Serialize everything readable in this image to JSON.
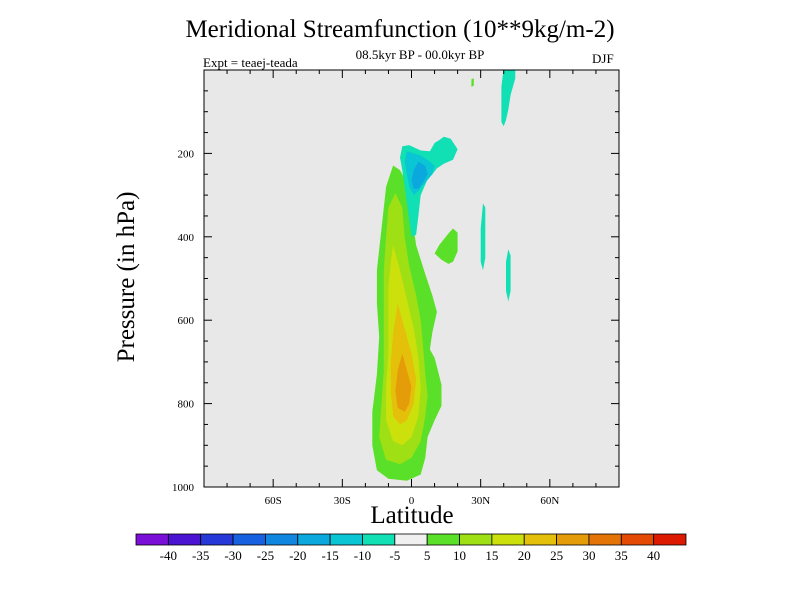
{
  "chart_data": {
    "type": "contour",
    "title": "Meridional Streamfunction (10**9kg/m-2)",
    "subtitle": "08.5kyr BP - 00.0kyr BP",
    "experiment": "Expt = teaej-teada",
    "season": "DJF",
    "xlabel": "Latitude",
    "ylabel": "Pressure (in hPa)",
    "xlim": [
      -90,
      90
    ],
    "ylim": [
      1000,
      0
    ],
    "x_ticks": [
      {
        "value": -60,
        "label": "60S"
      },
      {
        "value": -30,
        "label": "30S"
      },
      {
        "value": 0,
        "label": "0"
      },
      {
        "value": 30,
        "label": "30N"
      },
      {
        "value": 60,
        "label": "60N"
      }
    ],
    "y_ticks": [
      {
        "value": 200,
        "label": "200"
      },
      {
        "value": 400,
        "label": "400"
      },
      {
        "value": 600,
        "label": "600"
      },
      {
        "value": 800,
        "label": "800"
      },
      {
        "value": 1000,
        "label": "1000"
      }
    ],
    "background_color": "#e8e8e8",
    "colorbar": {
      "levels": [
        -40,
        -35,
        -30,
        -25,
        -20,
        -15,
        -10,
        -5,
        5,
        10,
        15,
        20,
        25,
        30,
        35,
        40
      ],
      "labels": [
        "-40",
        "-35",
        "-30",
        "-25",
        "-20",
        "-15",
        "-10",
        "-5",
        "5",
        "10",
        "15",
        "20",
        "25",
        "30",
        "35",
        "40"
      ],
      "colors": [
        "#7a0fd8",
        "#4b14d2",
        "#2638d8",
        "#1760e0",
        "#0f86e0",
        "#0aa8dc",
        "#0ac6d4",
        "#10e0b4",
        "#f0f0f0",
        "#5ae028",
        "#9ee014",
        "#cce00c",
        "#e4c00a",
        "#e49c08",
        "#e47406",
        "#e44a04",
        "#dc1a02"
      ]
    },
    "regions": [
      {
        "level": 10,
        "color": "#5ae028",
        "points": [
          [
            -8,
            229
          ],
          [
            -5,
            240
          ],
          [
            -1,
            280
          ],
          [
            0,
            340
          ],
          [
            2,
            420
          ],
          [
            6,
            490
          ],
          [
            9,
            540
          ],
          [
            11,
            580
          ],
          [
            9,
            630
          ],
          [
            8,
            670
          ],
          [
            10,
            690
          ],
          [
            13,
            755
          ],
          [
            13,
            805
          ],
          [
            10,
            840
          ],
          [
            7,
            880
          ],
          [
            6,
            930
          ],
          [
            4,
            970
          ],
          [
            -2,
            985
          ],
          [
            -10,
            980
          ],
          [
            -15,
            960
          ],
          [
            -17,
            900
          ],
          [
            -17,
            820
          ],
          [
            -15,
            730
          ],
          [
            -14,
            640
          ],
          [
            -15,
            560
          ],
          [
            -15,
            480
          ],
          [
            -13,
            380
          ],
          [
            -11,
            280
          ]
        ]
      },
      {
        "level": 10,
        "color": "#5ae028",
        "points": [
          [
            16,
            392
          ],
          [
            18,
            380
          ],
          [
            20,
            390
          ],
          [
            20,
            435
          ],
          [
            18,
            460
          ],
          [
            16,
            465
          ],
          [
            13,
            455
          ],
          [
            10,
            440
          ],
          [
            12,
            420
          ]
        ]
      },
      {
        "level": 10,
        "color": "#5ae028",
        "points": [
          [
            26,
            22
          ],
          [
            27,
            20
          ],
          [
            27,
            38
          ],
          [
            26,
            40
          ]
        ]
      },
      {
        "level": 15,
        "color": "#9ee014",
        "points": [
          [
            -7,
            295
          ],
          [
            -4,
            330
          ],
          [
            -3,
            400
          ],
          [
            -1,
            470
          ],
          [
            2,
            540
          ],
          [
            4,
            600
          ],
          [
            5,
            660
          ],
          [
            6,
            730
          ],
          [
            7,
            780
          ],
          [
            6,
            830
          ],
          [
            4,
            890
          ],
          [
            0,
            930
          ],
          [
            -5,
            945
          ],
          [
            -11,
            935
          ],
          [
            -14,
            880
          ],
          [
            -13,
            800
          ],
          [
            -12,
            720
          ],
          [
            -12,
            640
          ],
          [
            -12,
            560
          ],
          [
            -12,
            480
          ],
          [
            -11,
            400
          ],
          [
            -10,
            330
          ]
        ]
      },
      {
        "level": 20,
        "color": "#cce00c",
        "points": [
          [
            -8,
            420
          ],
          [
            -5,
            480
          ],
          [
            -2,
            550
          ],
          [
            1,
            620
          ],
          [
            3,
            690
          ],
          [
            4,
            760
          ],
          [
            3,
            830
          ],
          [
            0,
            880
          ],
          [
            -4,
            900
          ],
          [
            -8,
            890
          ],
          [
            -11,
            840
          ],
          [
            -11,
            760
          ],
          [
            -10,
            680
          ],
          [
            -10,
            600
          ],
          [
            -10,
            520
          ],
          [
            -9,
            460
          ]
        ]
      },
      {
        "level": 25,
        "color": "#e4c00a",
        "points": [
          [
            -6,
            560
          ],
          [
            -3,
            620
          ],
          [
            0,
            680
          ],
          [
            2,
            740
          ],
          [
            1,
            800
          ],
          [
            -2,
            840
          ],
          [
            -5,
            850
          ],
          [
            -8,
            830
          ],
          [
            -9,
            770
          ],
          [
            -9,
            700
          ],
          [
            -8,
            630
          ]
        ]
      },
      {
        "level": 30,
        "color": "#e49c08",
        "points": [
          [
            -4,
            680
          ],
          [
            -2,
            720
          ],
          [
            0,
            760
          ],
          [
            -1,
            800
          ],
          [
            -3,
            820
          ],
          [
            -6,
            810
          ],
          [
            -7,
            770
          ],
          [
            -6,
            720
          ]
        ]
      },
      {
        "level": -5,
        "color": "#10e0b4",
        "points": [
          [
            -4,
            183
          ],
          [
            -1,
            180
          ],
          [
            4,
            193
          ],
          [
            8,
            195
          ],
          [
            10,
            175
          ],
          [
            12,
            168
          ],
          [
            14,
            160
          ],
          [
            17,
            165
          ],
          [
            20,
            190
          ],
          [
            18,
            215
          ],
          [
            14,
            225
          ],
          [
            11,
            236
          ],
          [
            9,
            250
          ],
          [
            7,
            262
          ],
          [
            4,
            300
          ],
          [
            3,
            350
          ],
          [
            2,
            395
          ],
          [
            0,
            400
          ],
          [
            -1,
            360
          ],
          [
            -2,
            320
          ],
          [
            -3,
            280
          ],
          [
            -4,
            240
          ],
          [
            -5,
            210
          ]
        ]
      },
      {
        "level": -5,
        "color": "#10e0b4",
        "points": [
          [
            40,
            -5
          ],
          [
            45,
            -5
          ],
          [
            45,
            20
          ],
          [
            43,
            60
          ],
          [
            42,
            95
          ],
          [
            41,
            120
          ],
          [
            40,
            135
          ],
          [
            39,
            125
          ],
          [
            39,
            80
          ],
          [
            39,
            40
          ]
        ]
      },
      {
        "level": -5,
        "color": "#10e0b4",
        "points": [
          [
            31,
            320
          ],
          [
            32,
            330
          ],
          [
            32,
            450
          ],
          [
            31,
            480
          ],
          [
            30,
            460
          ],
          [
            30,
            380
          ]
        ]
      },
      {
        "level": -5,
        "color": "#10e0b4",
        "points": [
          [
            42,
            430
          ],
          [
            43,
            445
          ],
          [
            43,
            530
          ],
          [
            42,
            555
          ],
          [
            41,
            530
          ],
          [
            41,
            460
          ]
        ]
      },
      {
        "level": -10,
        "color": "#0ac6d4",
        "points": [
          [
            -2,
            195
          ],
          [
            4,
            205
          ],
          [
            8,
            220
          ],
          [
            10,
            230
          ],
          [
            9,
            250
          ],
          [
            6,
            270
          ],
          [
            3,
            290
          ],
          [
            1,
            300
          ],
          [
            -1,
            280
          ],
          [
            -2,
            250
          ],
          [
            -3,
            220
          ]
        ]
      },
      {
        "level": -15,
        "color": "#0aa8dc",
        "points": [
          [
            3,
            220
          ],
          [
            6,
            230
          ],
          [
            7,
            250
          ],
          [
            5,
            270
          ],
          [
            3,
            285
          ],
          [
            1,
            285
          ],
          [
            0,
            265
          ],
          [
            1,
            240
          ]
        ]
      }
    ]
  }
}
